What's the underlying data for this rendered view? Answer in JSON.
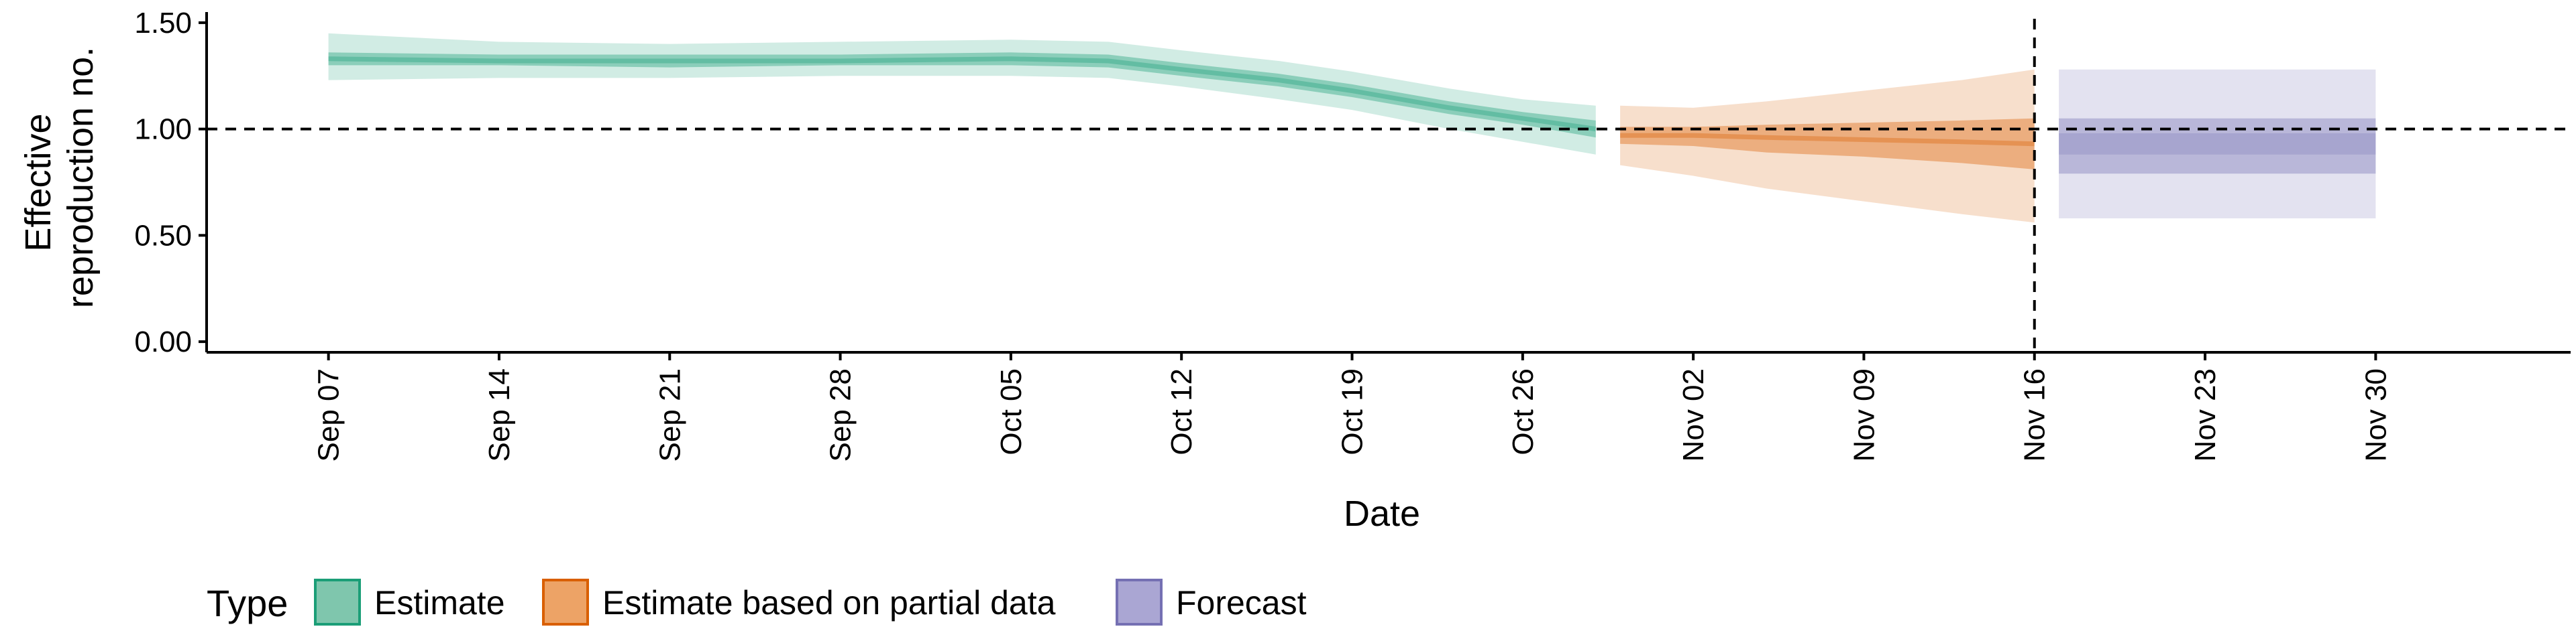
{
  "chart_data": {
    "type": "area",
    "xlabel": "Date",
    "ylabel_lines": [
      "Effective",
      "reproduction no."
    ],
    "ylim": [
      -0.05,
      1.55
    ],
    "yticks": [
      {
        "value": 0.0,
        "label": "0.00"
      },
      {
        "value": 0.5,
        "label": "0.50"
      },
      {
        "value": 1.0,
        "label": "1.00"
      },
      {
        "value": 1.5,
        "label": "1.50"
      }
    ],
    "xrange": [
      "2020-09-02",
      "2020-12-08"
    ],
    "xticks": [
      {
        "date": "2020-09-07",
        "label": "Sep 07"
      },
      {
        "date": "2020-09-14",
        "label": "Sep 14"
      },
      {
        "date": "2020-09-21",
        "label": "Sep 21"
      },
      {
        "date": "2020-09-28",
        "label": "Sep 28"
      },
      {
        "date": "2020-10-05",
        "label": "Oct 05"
      },
      {
        "date": "2020-10-12",
        "label": "Oct 12"
      },
      {
        "date": "2020-10-19",
        "label": "Oct 19"
      },
      {
        "date": "2020-10-26",
        "label": "Oct 26"
      },
      {
        "date": "2020-11-02",
        "label": "Nov 02"
      },
      {
        "date": "2020-11-09",
        "label": "Nov 09"
      },
      {
        "date": "2020-11-16",
        "label": "Nov 16"
      },
      {
        "date": "2020-11-23",
        "label": "Nov 23"
      },
      {
        "date": "2020-11-30",
        "label": "Nov 30"
      }
    ],
    "reference_lines": {
      "horizontal_y": 1.0,
      "vertical_date": "2020-11-16",
      "style": "dashed"
    },
    "grid": false,
    "legend": {
      "title": "Type",
      "placement": "bottom-left",
      "entries": [
        {
          "label": "Estimate",
          "fill": "#7fc6ad",
          "stroke": "#1b9e77"
        },
        {
          "label": "Estimate based on partial data",
          "fill": "#eda366",
          "stroke": "#d95f02"
        },
        {
          "label": "Forecast",
          "fill": "#aaa6d3",
          "stroke": "#7570b3"
        }
      ]
    },
    "series": [
      {
        "name": "Estimate",
        "color": "#1b9e77",
        "points": [
          {
            "date": "2020-09-07",
            "median": 1.33,
            "lo50": 1.3,
            "hi50": 1.36,
            "lo90": 1.23,
            "hi90": 1.45
          },
          {
            "date": "2020-09-14",
            "median": 1.32,
            "lo50": 1.3,
            "hi50": 1.35,
            "lo90": 1.24,
            "hi90": 1.41
          },
          {
            "date": "2020-09-21",
            "median": 1.32,
            "lo50": 1.29,
            "hi50": 1.35,
            "lo90": 1.24,
            "hi90": 1.4
          },
          {
            "date": "2020-09-28",
            "median": 1.32,
            "lo50": 1.3,
            "hi50": 1.35,
            "lo90": 1.25,
            "hi90": 1.41
          },
          {
            "date": "2020-10-05",
            "median": 1.33,
            "lo50": 1.3,
            "hi50": 1.36,
            "lo90": 1.25,
            "hi90": 1.42
          },
          {
            "date": "2020-10-09",
            "median": 1.32,
            "lo50": 1.29,
            "hi50": 1.35,
            "lo90": 1.24,
            "hi90": 1.41
          },
          {
            "date": "2020-10-12",
            "median": 1.28,
            "lo50": 1.25,
            "hi50": 1.31,
            "lo90": 1.2,
            "hi90": 1.37
          },
          {
            "date": "2020-10-16",
            "median": 1.23,
            "lo50": 1.2,
            "hi50": 1.26,
            "lo90": 1.14,
            "hi90": 1.32
          },
          {
            "date": "2020-10-19",
            "median": 1.18,
            "lo50": 1.15,
            "hi50": 1.21,
            "lo90": 1.09,
            "hi90": 1.27
          },
          {
            "date": "2020-10-23",
            "median": 1.1,
            "lo50": 1.07,
            "hi50": 1.13,
            "lo90": 1.0,
            "hi90": 1.19
          },
          {
            "date": "2020-10-26",
            "median": 1.05,
            "lo50": 1.02,
            "hi50": 1.08,
            "lo90": 0.94,
            "hi90": 1.14
          },
          {
            "date": "2020-10-29",
            "median": 1.0,
            "lo50": 0.96,
            "hi50": 1.04,
            "lo90": 0.88,
            "hi90": 1.11
          }
        ]
      },
      {
        "name": "Estimate based on partial data",
        "color": "#d95f02",
        "points": [
          {
            "date": "2020-10-30",
            "median": 0.97,
            "lo50": 0.93,
            "hi50": 1.01,
            "lo90": 0.83,
            "hi90": 1.11
          },
          {
            "date": "2020-11-02",
            "median": 0.97,
            "lo50": 0.92,
            "hi50": 1.01,
            "lo90": 0.78,
            "hi90": 1.1
          },
          {
            "date": "2020-11-05",
            "median": 0.96,
            "lo50": 0.89,
            "hi50": 1.02,
            "lo90": 0.72,
            "hi90": 1.13
          },
          {
            "date": "2020-11-09",
            "median": 0.95,
            "lo50": 0.87,
            "hi50": 1.03,
            "lo90": 0.66,
            "hi90": 1.18
          },
          {
            "date": "2020-11-13",
            "median": 0.94,
            "lo50": 0.84,
            "hi50": 1.04,
            "lo90": 0.6,
            "hi90": 1.23
          },
          {
            "date": "2020-11-16",
            "median": 0.93,
            "lo50": 0.81,
            "hi50": 1.05,
            "lo90": 0.56,
            "hi90": 1.28
          }
        ]
      },
      {
        "name": "Forecast",
        "color": "#7570b3",
        "points": [
          {
            "date": "2020-11-17",
            "median": 0.93,
            "lo50": 0.79,
            "hi50": 1.05,
            "lo90": 0.58,
            "hi90": 1.28,
            "lo20": 0.88,
            "hi20": 0.98
          },
          {
            "date": "2020-11-30",
            "median": 0.93,
            "lo50": 0.79,
            "hi50": 1.05,
            "lo90": 0.58,
            "hi90": 1.28,
            "lo20": 0.88,
            "hi20": 0.98
          }
        ]
      }
    ]
  }
}
